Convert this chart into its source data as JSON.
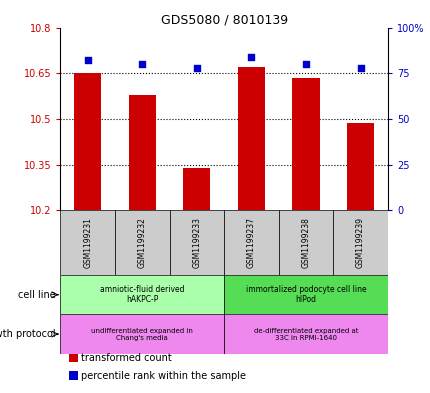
{
  "title": "GDS5080 / 8010139",
  "samples": [
    "GSM1199231",
    "GSM1199232",
    "GSM1199233",
    "GSM1199237",
    "GSM1199238",
    "GSM1199239"
  ],
  "bar_values": [
    10.65,
    10.58,
    10.34,
    10.67,
    10.635,
    10.485
  ],
  "percentile_values": [
    82,
    80,
    78,
    84,
    80,
    78
  ],
  "ylim_left": [
    10.2,
    10.8
  ],
  "ylim_right": [
    0,
    100
  ],
  "yticks_left": [
    10.2,
    10.35,
    10.5,
    10.65,
    10.8
  ],
  "yticks_right": [
    0,
    25,
    50,
    75,
    100
  ],
  "ytick_labels_left": [
    "10.2",
    "10.35",
    "10.5",
    "10.65",
    "10.8"
  ],
  "ytick_labels_right": [
    "0",
    "25",
    "50",
    "75",
    "100%"
  ],
  "bar_color": "#cc0000",
  "percentile_color": "#0000cc",
  "bar_bottom": 10.2,
  "cell_line_groups": [
    {
      "label": "amniotic-fluid derived\nhAKPC-P",
      "start": 0,
      "end": 3,
      "color": "#aaffaa"
    },
    {
      "label": "immortalized podocyte cell line\nhlPod",
      "start": 3,
      "end": 6,
      "color": "#55dd55"
    }
  ],
  "growth_protocol_groups": [
    {
      "label": "undifferentiated expanded in\nChang's media",
      "start": 0,
      "end": 3,
      "color": "#ee88ee"
    },
    {
      "label": "de-differentiated expanded at\n33C in RPMI-1640",
      "start": 3,
      "end": 6,
      "color": "#ee88ee"
    }
  ],
  "left_label_cell_line": "cell line",
  "left_label_growth": "growth protocol",
  "legend_items": [
    {
      "color": "#cc0000",
      "label": "transformed count"
    },
    {
      "color": "#0000cc",
      "label": "percentile rank within the sample"
    }
  ],
  "tick_color_left": "#cc0000",
  "tick_color_right": "#0000cc",
  "sample_box_color": "#cccccc"
}
